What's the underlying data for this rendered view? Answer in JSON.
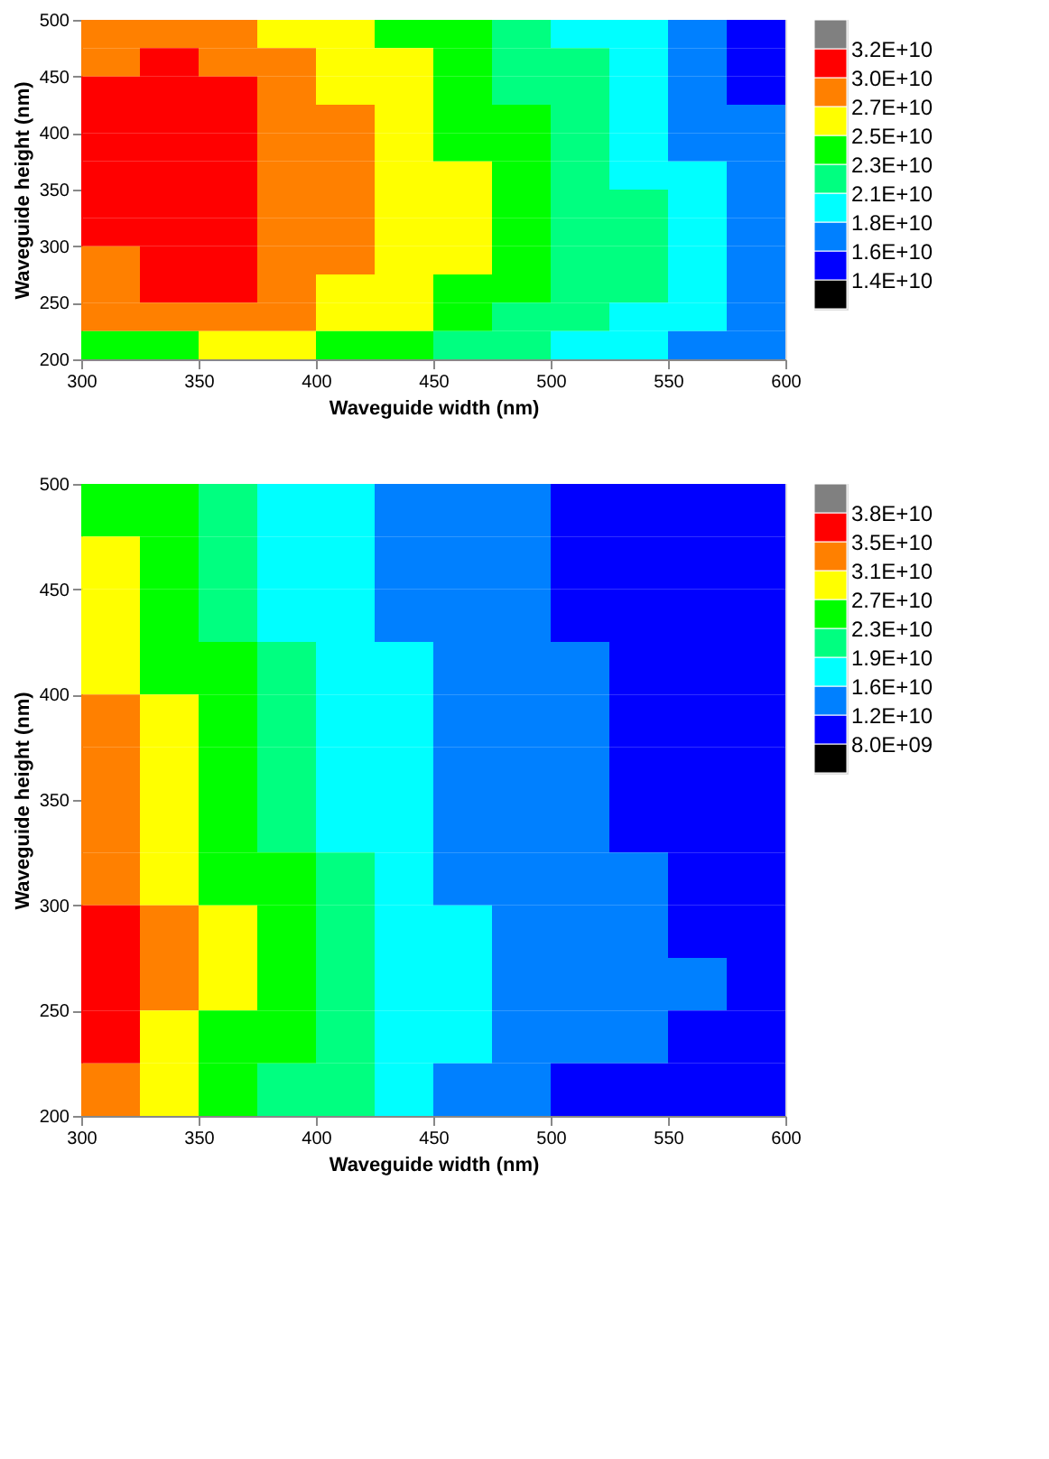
{
  "chart_data": [
    {
      "type": "heatmap",
      "xlabel": "Waveguide width (nm)",
      "ylabel": "Waveguide height (nm)",
      "xlim": [
        300,
        600
      ],
      "ylim": [
        200,
        500
      ],
      "xticks": [
        300,
        350,
        400,
        450,
        500,
        550,
        600
      ],
      "yticks": [
        200,
        250,
        300,
        350,
        400,
        450,
        500
      ],
      "grid": false,
      "clim": [
        12000000000,
        34000000000
      ],
      "cticks": [
        {
          "value": 14000000000,
          "label": "1.4E+10"
        },
        {
          "value": 16000000000,
          "label": "1.6E+10"
        },
        {
          "value": 18000000000,
          "label": "1.8E+10"
        },
        {
          "value": 21000000000,
          "label": "2.1E+10"
        },
        {
          "value": 23000000000,
          "label": "2.3E+10"
        },
        {
          "value": 25000000000,
          "label": "2.5E+10"
        },
        {
          "value": 27000000000,
          "label": "2.7E+10"
        },
        {
          "value": 30000000000,
          "label": "3.0E+10"
        },
        {
          "value": 32000000000,
          "label": "3.2E+10"
        }
      ],
      "colors": [
        "#000000",
        "#0000ff",
        "#0080ff",
        "#00ffff",
        "#00ff80",
        "#00ff00",
        "#ffff00",
        "#ff8000",
        "#ff0000",
        "#808080"
      ],
      "cells": [
        [
          28500000000,
          28500000000,
          28500000000,
          26000000000,
          26000000000,
          24000000000,
          24000000000,
          22000000000,
          19500000000,
          19500000000,
          17000000000,
          15000000000
        ],
        [
          28500000000,
          31000000000,
          28500000000,
          28500000000,
          26000000000,
          26000000000,
          24000000000,
          22000000000,
          22000000000,
          19500000000,
          17000000000,
          15000000000
        ],
        [
          31000000000,
          31000000000,
          31000000000,
          28500000000,
          26000000000,
          26000000000,
          24000000000,
          22000000000,
          22000000000,
          19500000000,
          17000000000,
          15000000000
        ],
        [
          31000000000,
          31000000000,
          31000000000,
          28500000000,
          28500000000,
          26000000000,
          24000000000,
          24000000000,
          22000000000,
          19500000000,
          17000000000,
          17000000000
        ],
        [
          31000000000,
          31000000000,
          31000000000,
          28500000000,
          28500000000,
          26000000000,
          24000000000,
          24000000000,
          22000000000,
          19500000000,
          17000000000,
          17000000000
        ],
        [
          31000000000,
          31000000000,
          31000000000,
          28500000000,
          28500000000,
          26000000000,
          26000000000,
          24000000000,
          22000000000,
          19500000000,
          19500000000,
          17000000000
        ],
        [
          31000000000,
          31000000000,
          31000000000,
          28500000000,
          28500000000,
          26000000000,
          26000000000,
          24000000000,
          22000000000,
          22000000000,
          19500000000,
          17000000000
        ],
        [
          31000000000,
          31000000000,
          31000000000,
          28500000000,
          28500000000,
          26000000000,
          26000000000,
          24000000000,
          22000000000,
          22000000000,
          19500000000,
          17000000000
        ],
        [
          28500000000,
          31000000000,
          31000000000,
          28500000000,
          28500000000,
          26000000000,
          26000000000,
          24000000000,
          22000000000,
          22000000000,
          19500000000,
          17000000000
        ],
        [
          28500000000,
          31000000000,
          31000000000,
          28500000000,
          26000000000,
          26000000000,
          24000000000,
          24000000000,
          22000000000,
          22000000000,
          19500000000,
          17000000000
        ],
        [
          28500000000,
          28500000000,
          28500000000,
          28500000000,
          26000000000,
          26000000000,
          24000000000,
          22000000000,
          22000000000,
          19500000000,
          19500000000,
          17000000000
        ],
        [
          24000000000,
          24000000000,
          26000000000,
          26000000000,
          24000000000,
          24000000000,
          22000000000,
          22000000000,
          19500000000,
          19500000000,
          17000000000,
          17000000000
        ]
      ]
    },
    {
      "type": "heatmap",
      "xlabel": "Waveguide width (nm)",
      "ylabel": "Waveguide height (nm)",
      "xlim": [
        300,
        600
      ],
      "ylim": [
        200,
        500
      ],
      "xticks": [
        300,
        350,
        400,
        450,
        500,
        550,
        600
      ],
      "yticks": [
        200,
        250,
        300,
        350,
        400,
        450,
        500
      ],
      "grid": false,
      "clim": [
        4000000000,
        41000000000
      ],
      "cticks": [
        {
          "value": 8000000000,
          "label": "8.0E+09"
        },
        {
          "value": 12000000000,
          "label": "1.2E+10"
        },
        {
          "value": 16000000000,
          "label": "1.6E+10"
        },
        {
          "value": 19000000000,
          "label": "1.9E+10"
        },
        {
          "value": 23000000000,
          "label": "2.3E+10"
        },
        {
          "value": 27000000000,
          "label": "2.7E+10"
        },
        {
          "value": 31000000000,
          "label": "3.1E+10"
        },
        {
          "value": 35000000000,
          "label": "3.5E+10"
        },
        {
          "value": 38000000000,
          "label": "3.8E+10"
        }
      ],
      "colors": [
        "#000000",
        "#0000ff",
        "#0080ff",
        "#00ffff",
        "#00ff80",
        "#00ff00",
        "#ffff00",
        "#ff8000",
        "#ff0000",
        "#808080"
      ],
      "cells": [
        [
          25000000000,
          25000000000,
          21000000000,
          17500000000,
          17500000000,
          14000000000,
          14000000000,
          14000000000,
          10000000000,
          10000000000,
          10000000000,
          10000000000
        ],
        [
          29000000000,
          25000000000,
          21000000000,
          17500000000,
          17500000000,
          14000000000,
          14000000000,
          14000000000,
          10000000000,
          10000000000,
          10000000000,
          10000000000
        ],
        [
          29000000000,
          25000000000,
          21000000000,
          17500000000,
          17500000000,
          14000000000,
          14000000000,
          14000000000,
          10000000000,
          10000000000,
          10000000000,
          10000000000
        ],
        [
          29000000000,
          25000000000,
          25000000000,
          21000000000,
          17500000000,
          17500000000,
          14000000000,
          14000000000,
          14000000000,
          10000000000,
          10000000000,
          10000000000
        ],
        [
          33000000000,
          29000000000,
          25000000000,
          21000000000,
          17500000000,
          17500000000,
          14000000000,
          14000000000,
          14000000000,
          10000000000,
          10000000000,
          10000000000
        ],
        [
          33000000000,
          29000000000,
          25000000000,
          21000000000,
          17500000000,
          17500000000,
          14000000000,
          14000000000,
          14000000000,
          10000000000,
          10000000000,
          10000000000
        ],
        [
          33000000000,
          29000000000,
          25000000000,
          21000000000,
          17500000000,
          17500000000,
          14000000000,
          14000000000,
          14000000000,
          10000000000,
          10000000000,
          10000000000
        ],
        [
          33000000000,
          29000000000,
          25000000000,
          25000000000,
          21000000000,
          17500000000,
          14000000000,
          14000000000,
          14000000000,
          14000000000,
          10000000000,
          10000000000
        ],
        [
          36500000000,
          33000000000,
          29000000000,
          25000000000,
          21000000000,
          17500000000,
          17500000000,
          14000000000,
          14000000000,
          14000000000,
          10000000000,
          10000000000
        ],
        [
          36500000000,
          33000000000,
          29000000000,
          25000000000,
          21000000000,
          17500000000,
          17500000000,
          14000000000,
          14000000000,
          14000000000,
          14000000000,
          10000000000
        ],
        [
          36500000000,
          29000000000,
          25000000000,
          25000000000,
          21000000000,
          17500000000,
          17500000000,
          14000000000,
          14000000000,
          14000000000,
          10000000000,
          10000000000
        ],
        [
          33000000000,
          29000000000,
          25000000000,
          21000000000,
          21000000000,
          17500000000,
          14000000000,
          14000000000,
          10000000000,
          10000000000,
          10000000000,
          10000000000
        ]
      ]
    }
  ]
}
